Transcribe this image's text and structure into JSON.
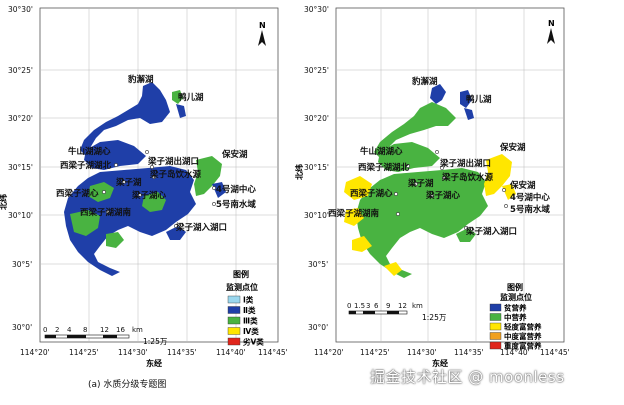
{
  "left_map": {
    "caption": "(a) 水质分级专题图",
    "lat_label": "北纬",
    "lon_label": "东经",
    "north": "N",
    "lat_ticks": [
      "30°30'",
      "30°25'",
      "30°20'",
      "30°15'",
      "30°10'",
      "30°5'",
      "30°0'"
    ],
    "lon_ticks": [
      "114°20'",
      "114°25'",
      "114°30'",
      "114°35'",
      "114°40'",
      "114°45'"
    ],
    "scale_numbers": [
      "0",
      "2",
      "4",
      "8",
      "12",
      "16"
    ],
    "scale_unit": "km",
    "scale_ratio": "1:25万",
    "places": [
      "豹澥湖",
      "鸭儿湖",
      "牛山湖湖心",
      "保安湖",
      "西梁子湖湖北",
      "梁子湖出湖口",
      "梁子湖",
      "梁子岛饮水源",
      "4号湖中心",
      "西梁子湖心",
      "5号南水域",
      "梁子湖心",
      "西梁子湖湖南",
      "梁子湖入湖口"
    ],
    "legend": {
      "title": "图例",
      "subtitle": "监测点位",
      "items": [
        {
          "label": "Ⅰ类",
          "color": "#9ad7ee"
        },
        {
          "label": "Ⅱ类",
          "color": "#1f3fa8"
        },
        {
          "label": "Ⅲ类",
          "color": "#49b341"
        },
        {
          "label": "Ⅳ类",
          "color": "#ffe600"
        },
        {
          "label": "劣Ⅴ类",
          "color": "#e0261c"
        }
      ]
    }
  },
  "right_map": {
    "caption": "",
    "lat_label": "北纬",
    "lon_label": "东经",
    "north": "N",
    "lat_ticks": [
      "30°30'",
      "30°25'",
      "30°20'",
      "30°15'",
      "30°10'",
      "30°5'",
      "30°0'"
    ],
    "lon_ticks": [
      "114°20'",
      "114°25'",
      "114°30'",
      "114°35'",
      "114°40'",
      "114°45'"
    ],
    "scale_numbers": [
      "0",
      "1.5",
      "3",
      "6",
      "9",
      "12"
    ],
    "scale_unit": "km",
    "scale_ratio": "1:25万",
    "places": [
      "豹澥湖",
      "鸭儿湖",
      "牛山湖湖心",
      "保安湖",
      "西梁子湖湖北",
      "梁子湖出湖口",
      "梁子湖",
      "梁子岛饮水源",
      "保安湖",
      "4号湖中心",
      "西梁子湖心",
      "5号南水域",
      "梁子湖心",
      "西梁子湖湖南",
      "梁子湖入湖口"
    ],
    "legend": {
      "title": "图例",
      "subtitle": "监测点位",
      "items": [
        {
          "label": "贫营养",
          "color": "#1f3fa8"
        },
        {
          "label": "中营养",
          "color": "#49b341"
        },
        {
          "label": "轻度富营养",
          "color": "#ffe600"
        },
        {
          "label": "中度富营养",
          "color": "#f0a020"
        },
        {
          "label": "重度富营养",
          "color": "#e0261c"
        }
      ]
    }
  },
  "watermark": "掘金技术社区 @ moonless",
  "colors": {
    "blue": "#1f3fa8",
    "green": "#49b341",
    "yellow": "#ffe600",
    "light": "#9ad7ee"
  }
}
